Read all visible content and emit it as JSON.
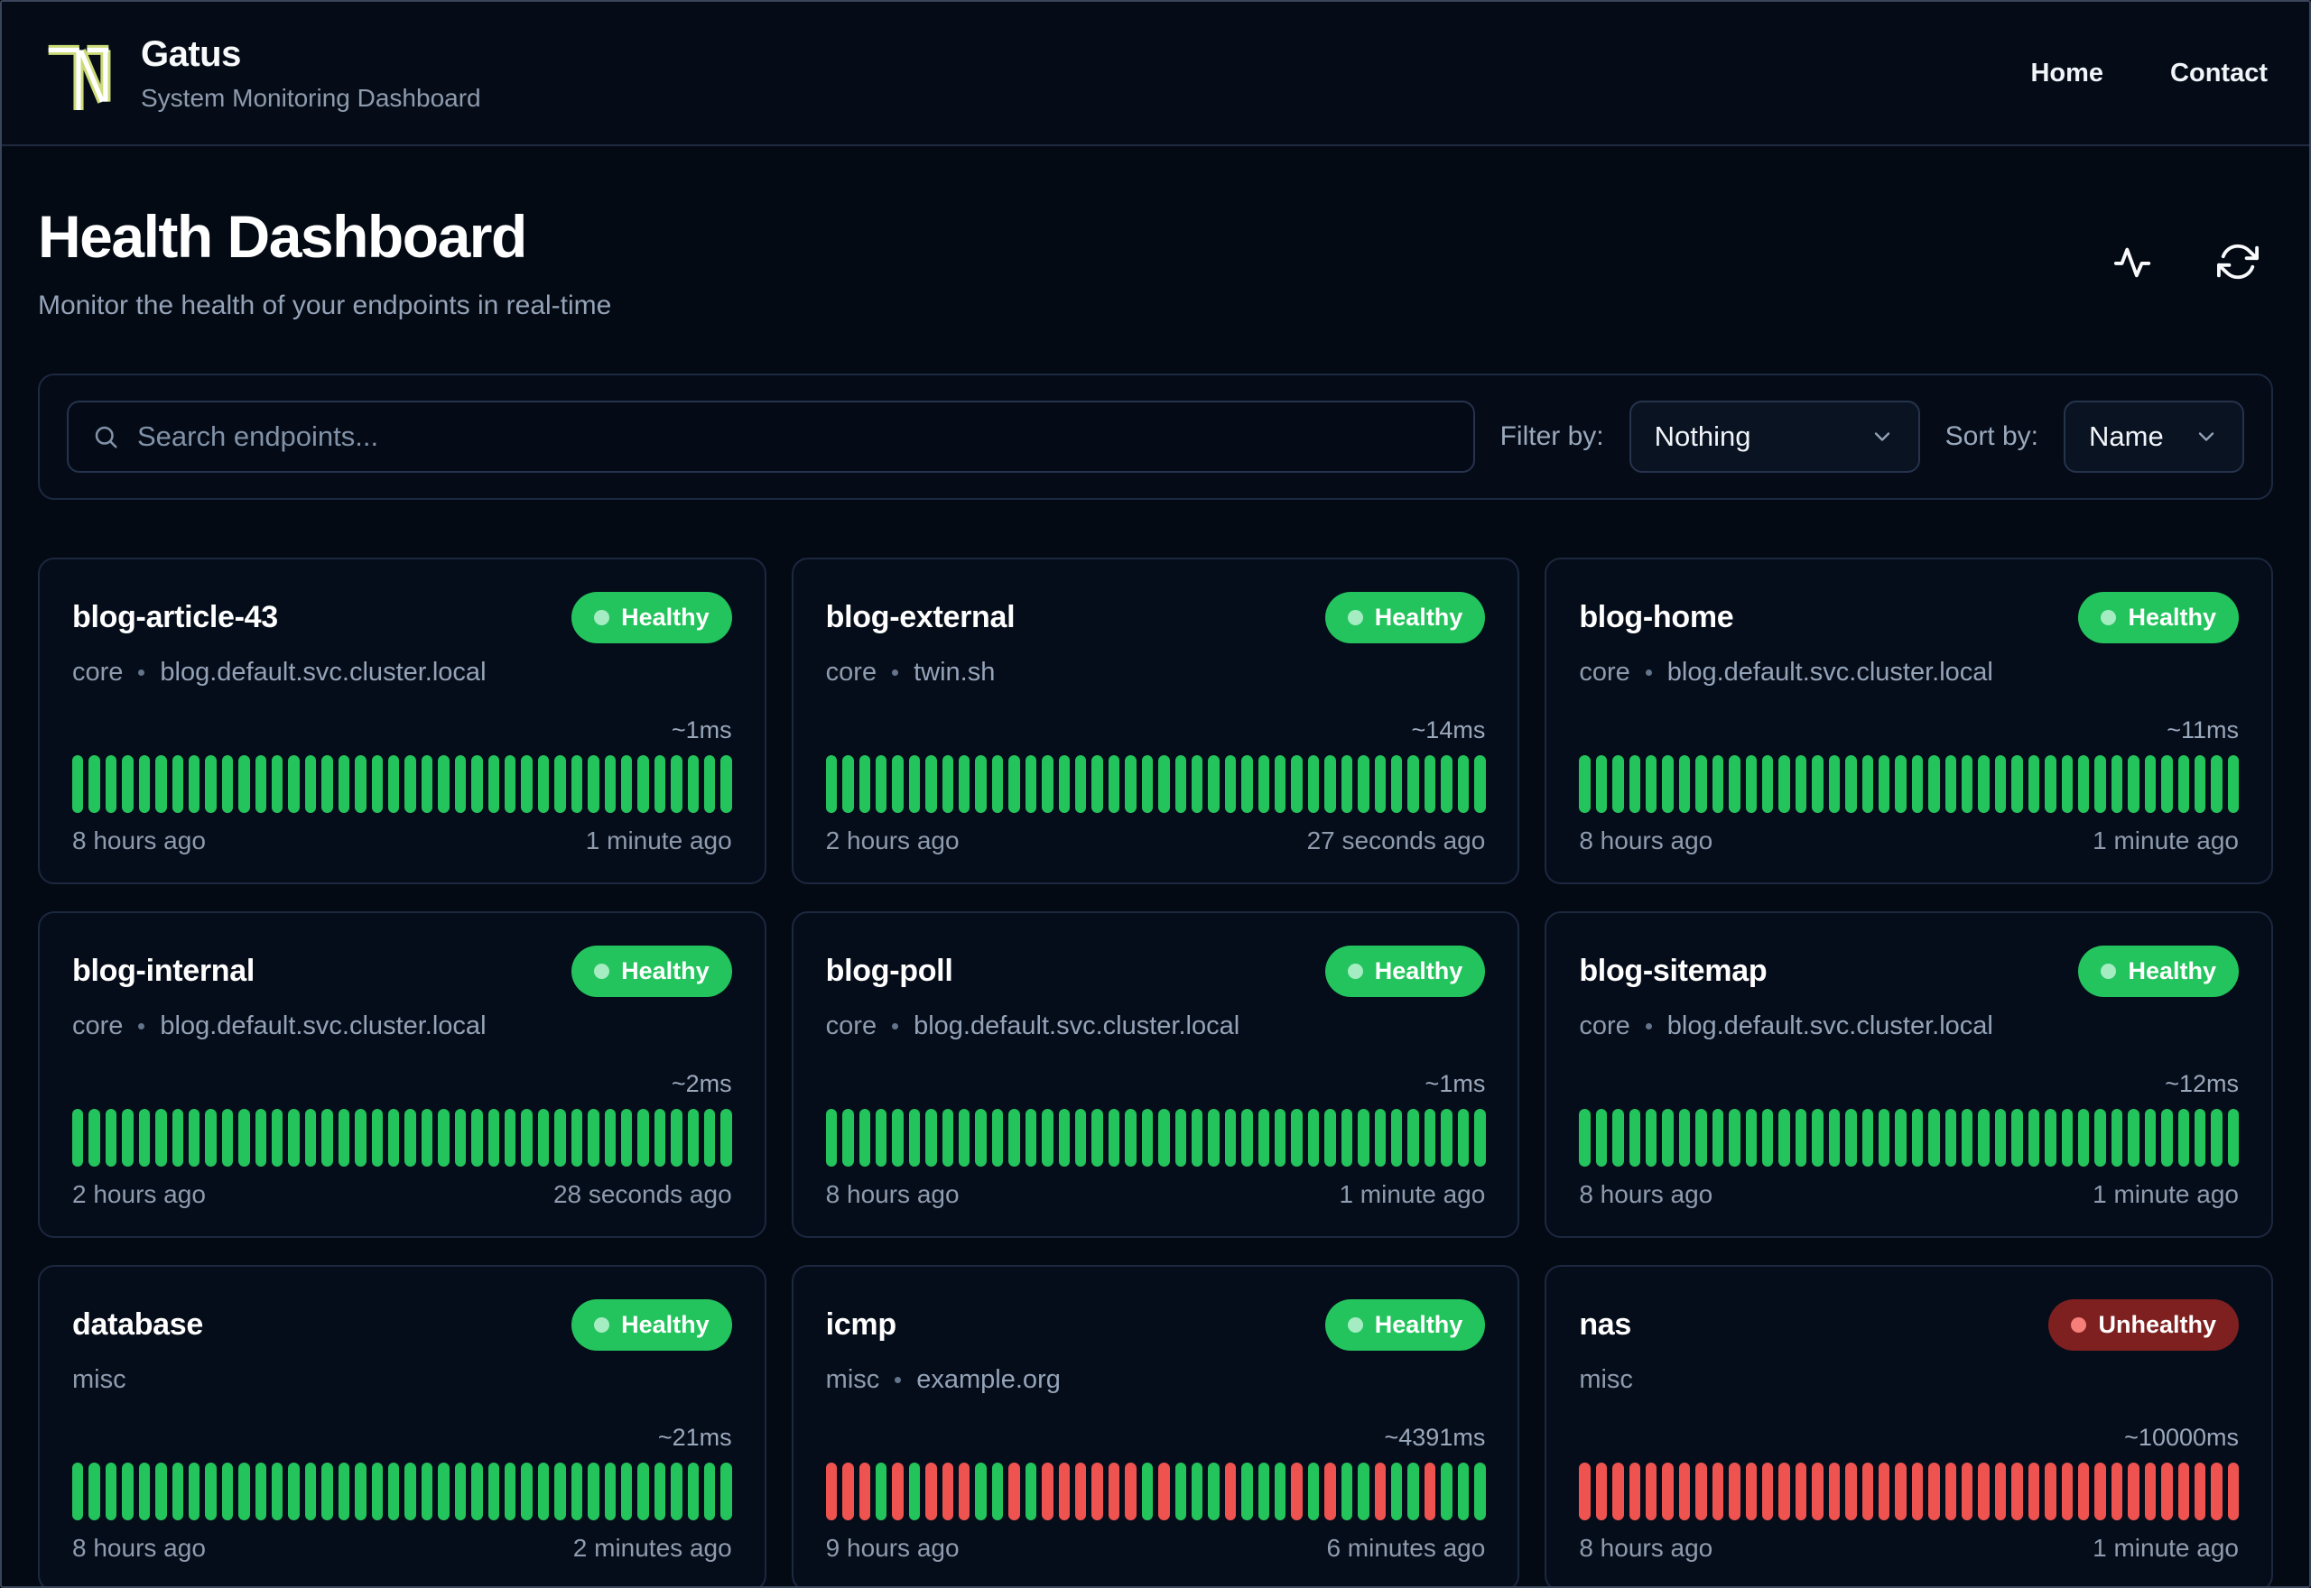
{
  "palette": {
    "up_bar": "#24c45c",
    "down_bar": "#ef5350",
    "badge_healthy_bg": "#23c45d",
    "badge_unhealthy_bg": "#7f2020",
    "logo_accent": "#ccdb78",
    "page_bg": "#040a14",
    "card_bg": "#060d1a"
  },
  "header": {
    "brand": "Gatus",
    "tagline": "System Monitoring Dashboard",
    "nav": [
      {
        "label": "Home"
      },
      {
        "label": "Contact"
      }
    ]
  },
  "page": {
    "title": "Health Dashboard",
    "subtitle": "Monitor the health of your endpoints in real-time"
  },
  "toolbar": {
    "search_placeholder": "Search endpoints...",
    "filter_label": "Filter by:",
    "filter_value": "Nothing",
    "sort_label": "Sort by:",
    "sort_value": "Name"
  },
  "icons": {
    "header_actions": [
      "activity-pulse-icon",
      "refresh-icon"
    ],
    "search": "search-icon",
    "dropdown": "chevron-down-icon"
  },
  "cards": [
    {
      "name": "blog-article-43",
      "status": "healthy",
      "status_label": "Healthy",
      "group": "core",
      "host": "blog.default.svc.cluster.local",
      "latency": "~1ms",
      "from": "8 hours ago",
      "to": "1 minute ago",
      "pattern": "gggggggggggggggggggggggggggggggggggggggg"
    },
    {
      "name": "blog-external",
      "status": "healthy",
      "status_label": "Healthy",
      "group": "core",
      "host": "twin.sh",
      "latency": "~14ms",
      "from": "2 hours ago",
      "to": "27 seconds ago",
      "pattern": "gggggggggggggggggggggggggggggggggggggggg"
    },
    {
      "name": "blog-home",
      "status": "healthy",
      "status_label": "Healthy",
      "group": "core",
      "host": "blog.default.svc.cluster.local",
      "latency": "~11ms",
      "from": "8 hours ago",
      "to": "1 minute ago",
      "pattern": "gggggggggggggggggggggggggggggggggggggggg"
    },
    {
      "name": "blog-internal",
      "status": "healthy",
      "status_label": "Healthy",
      "group": "core",
      "host": "blog.default.svc.cluster.local",
      "latency": "~2ms",
      "from": "2 hours ago",
      "to": "28 seconds ago",
      "pattern": "gggggggggggggggggggggggggggggggggggggggg"
    },
    {
      "name": "blog-poll",
      "status": "healthy",
      "status_label": "Healthy",
      "group": "core",
      "host": "blog.default.svc.cluster.local",
      "latency": "~1ms",
      "from": "8 hours ago",
      "to": "1 minute ago",
      "pattern": "gggggggggggggggggggggggggggggggggggggggg"
    },
    {
      "name": "blog-sitemap",
      "status": "healthy",
      "status_label": "Healthy",
      "group": "core",
      "host": "blog.default.svc.cluster.local",
      "latency": "~12ms",
      "from": "8 hours ago",
      "to": "1 minute ago",
      "pattern": "gggggggggggggggggggggggggggggggggggggggg"
    },
    {
      "name": "database",
      "status": "healthy",
      "status_label": "Healthy",
      "group": "misc",
      "host": "",
      "latency": "~21ms",
      "from": "8 hours ago",
      "to": "2 minutes ago",
      "pattern": "gggggggggggggggggggggggggggggggggggggggg"
    },
    {
      "name": "icmp",
      "status": "healthy",
      "status_label": "Healthy",
      "group": "misc",
      "host": "example.org",
      "latency": "~4391ms",
      "from": "9 hours ago",
      "to": "6 minutes ago",
      "pattern": "rrrgrgrrrggrgrrrrrrgrgggrgggrgrggrggrggg"
    },
    {
      "name": "nas",
      "status": "unhealthy",
      "status_label": "Unhealthy",
      "group": "misc",
      "host": "",
      "latency": "~10000ms",
      "from": "8 hours ago",
      "to": "1 minute ago",
      "pattern": "rrrrrrrrrrrrrrrrrrrrrrrrrrrrrrrrrrrrrrrr"
    }
  ]
}
